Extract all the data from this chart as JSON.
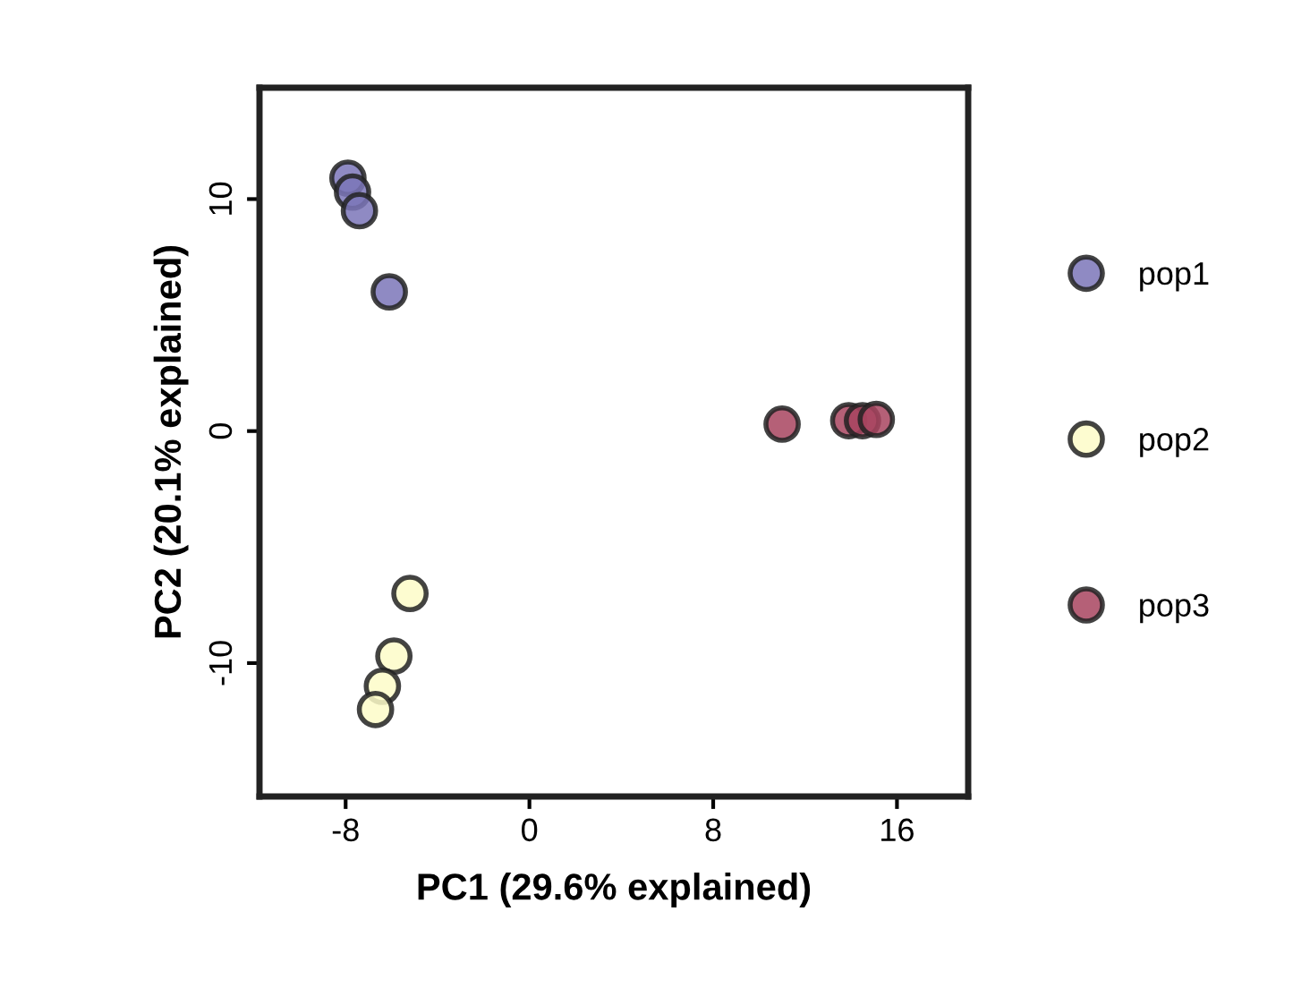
{
  "chart_data": {
    "type": "scatter",
    "xlabel": "PC1 (29.6% explained)",
    "ylabel": "PC2 (20.1% explained)",
    "xlim": [
      -11.75,
      19.1
    ],
    "ylim": [
      -15.75,
      14.8
    ],
    "xticks": [
      -8,
      0,
      8,
      16
    ],
    "yticks": [
      -10,
      0,
      10
    ],
    "grid": false,
    "legend": "right",
    "marker": "circle",
    "series": [
      {
        "name": "pop1",
        "color": "#7b75b8",
        "x": [
          -7.9,
          -7.7,
          -7.4,
          -6.1
        ],
        "values": [
          10.9,
          10.3,
          9.5,
          6.0
        ]
      },
      {
        "name": "pop2",
        "color": "#fdfbc8",
        "x": [
          -5.2,
          -5.9,
          -6.4,
          -6.7
        ],
        "values": [
          -7.0,
          -9.7,
          -11.0,
          -12.0
        ]
      },
      {
        "name": "pop3",
        "color": "#a8445f",
        "x": [
          11.0,
          13.9,
          14.5,
          15.1
        ],
        "values": [
          0.3,
          0.45,
          0.45,
          0.5
        ]
      }
    ]
  }
}
